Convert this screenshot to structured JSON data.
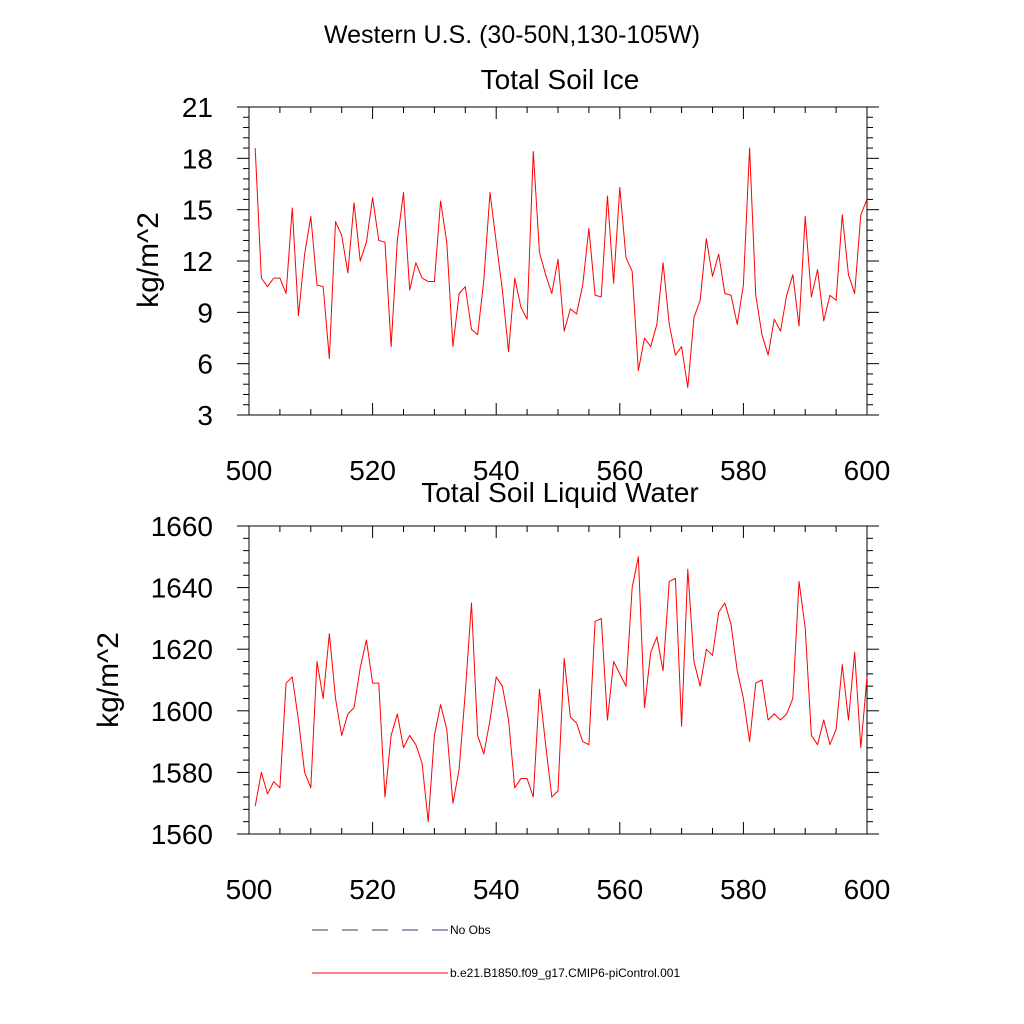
{
  "suptitle": "Western U.S. (30-50N,130-105W)",
  "legend": [
    {
      "label": "No Obs",
      "color": "#3a3a66",
      "dash": "dashed"
    },
    {
      "label": "b.e21.B1850.f09_g17.CMIP6-piControl.001",
      "color": "#ff0000",
      "dash": "solid"
    }
  ],
  "chart_data": [
    {
      "type": "line",
      "title": "Total Soil Ice",
      "ylabel": "kg/m^2",
      "xlim": [
        500,
        600
      ],
      "ylim": [
        3,
        21
      ],
      "xticks": [
        500,
        520,
        540,
        560,
        580,
        600
      ],
      "yticks": [
        3,
        6,
        9,
        12,
        15,
        18,
        21
      ],
      "series": [
        {
          "color": "#ff0000",
          "x": [
            501,
            502,
            503,
            504,
            505,
            506,
            507,
            508,
            509,
            510,
            511,
            512,
            513,
            514,
            515,
            516,
            517,
            518,
            519,
            520,
            521,
            522,
            523,
            524,
            525,
            526,
            527,
            528,
            529,
            530,
            531,
            532,
            533,
            534,
            535,
            536,
            537,
            538,
            539,
            540,
            541,
            542,
            543,
            544,
            545,
            546,
            547,
            548,
            549,
            550,
            551,
            552,
            553,
            554,
            555,
            556,
            557,
            558,
            559,
            560,
            561,
            562,
            563,
            564,
            565,
            566,
            567,
            568,
            569,
            570,
            571,
            572,
            573,
            574,
            575,
            576,
            577,
            578,
            579,
            580,
            581,
            582,
            583,
            584,
            585,
            586,
            587,
            588,
            589,
            590,
            591,
            592,
            593,
            594,
            595,
            596,
            597,
            598,
            599,
            600
          ],
          "values": [
            18.6,
            11.0,
            10.5,
            11.0,
            11.0,
            10.1,
            15.1,
            8.8,
            12.4,
            14.6,
            10.6,
            10.5,
            6.3,
            14.3,
            13.5,
            11.3,
            15.4,
            12.0,
            13.1,
            15.7,
            13.2,
            13.1,
            7.0,
            13.2,
            16.0,
            10.3,
            11.9,
            11.0,
            10.8,
            10.8,
            15.5,
            13.1,
            7.0,
            10.1,
            10.5,
            8.0,
            7.7,
            10.9,
            16.0,
            13.1,
            10.3,
            6.7,
            11.0,
            9.3,
            8.6,
            18.4,
            12.5,
            11.2,
            10.1,
            12.1,
            7.9,
            9.2,
            8.9,
            10.6,
            13.9,
            10.0,
            9.9,
            15.8,
            10.7,
            16.3,
            12.2,
            11.4,
            5.6,
            7.5,
            7.0,
            8.3,
            11.9,
            8.3,
            6.5,
            7.0,
            4.6,
            8.7,
            9.7,
            13.3,
            11.1,
            12.4,
            10.1,
            10.0,
            8.3,
            10.6,
            18.6,
            10.0,
            7.7,
            6.5,
            8.6,
            7.9,
            10.0,
            11.2,
            8.2,
            14.6,
            9.9,
            11.5,
            8.5,
            10.0,
            9.7,
            14.7,
            11.2,
            10.1,
            14.7,
            15.6
          ]
        }
      ]
    },
    {
      "type": "line",
      "title": "Total Soil Liquid Water",
      "ylabel": "kg/m^2",
      "xlim": [
        500,
        600
      ],
      "ylim": [
        1560,
        1660
      ],
      "xticks": [
        500,
        520,
        540,
        560,
        580,
        600
      ],
      "yticks": [
        1560,
        1580,
        1600,
        1620,
        1640,
        1660
      ],
      "series": [
        {
          "color": "#ff0000",
          "x": [
            501,
            502,
            503,
            504,
            505,
            506,
            507,
            508,
            509,
            510,
            511,
            512,
            513,
            514,
            515,
            516,
            517,
            518,
            519,
            520,
            521,
            522,
            523,
            524,
            525,
            526,
            527,
            528,
            529,
            530,
            531,
            532,
            533,
            534,
            535,
            536,
            537,
            538,
            539,
            540,
            541,
            542,
            543,
            544,
            545,
            546,
            547,
            548,
            549,
            550,
            551,
            552,
            553,
            554,
            555,
            556,
            557,
            558,
            559,
            560,
            561,
            562,
            563,
            564,
            565,
            566,
            567,
            568,
            569,
            570,
            571,
            572,
            573,
            574,
            575,
            576,
            577,
            578,
            579,
            580,
            581,
            582,
            583,
            584,
            585,
            586,
            587,
            588,
            589,
            590,
            591,
            592,
            593,
            594,
            595,
            596,
            597,
            598,
            599,
            600
          ],
          "values": [
            1569,
            1580,
            1573,
            1577,
            1575,
            1609,
            1611,
            1597,
            1580,
            1575,
            1616,
            1604,
            1625,
            1604,
            1592,
            1599,
            1601,
            1614,
            1623,
            1609,
            1609,
            1572,
            1592,
            1599,
            1588,
            1592,
            1589,
            1583,
            1564,
            1592,
            1602,
            1594,
            1570,
            1581,
            1606,
            1635,
            1592,
            1586,
            1597,
            1611,
            1608,
            1597,
            1575,
            1578,
            1578,
            1572,
            1607,
            1589,
            1572,
            1574,
            1617,
            1598,
            1596,
            1590,
            1589,
            1629,
            1630,
            1597,
            1616,
            1612,
            1608,
            1640,
            1650,
            1601,
            1619,
            1624,
            1613,
            1642,
            1643,
            1595,
            1646,
            1616,
            1608,
            1620,
            1618,
            1632,
            1635,
            1628,
            1613,
            1604,
            1590,
            1609,
            1610,
            1597,
            1599,
            1597,
            1599,
            1604,
            1642,
            1627,
            1592,
            1589,
            1597,
            1589,
            1594,
            1615,
            1597,
            1619,
            1588,
            1611
          ]
        }
      ]
    }
  ]
}
